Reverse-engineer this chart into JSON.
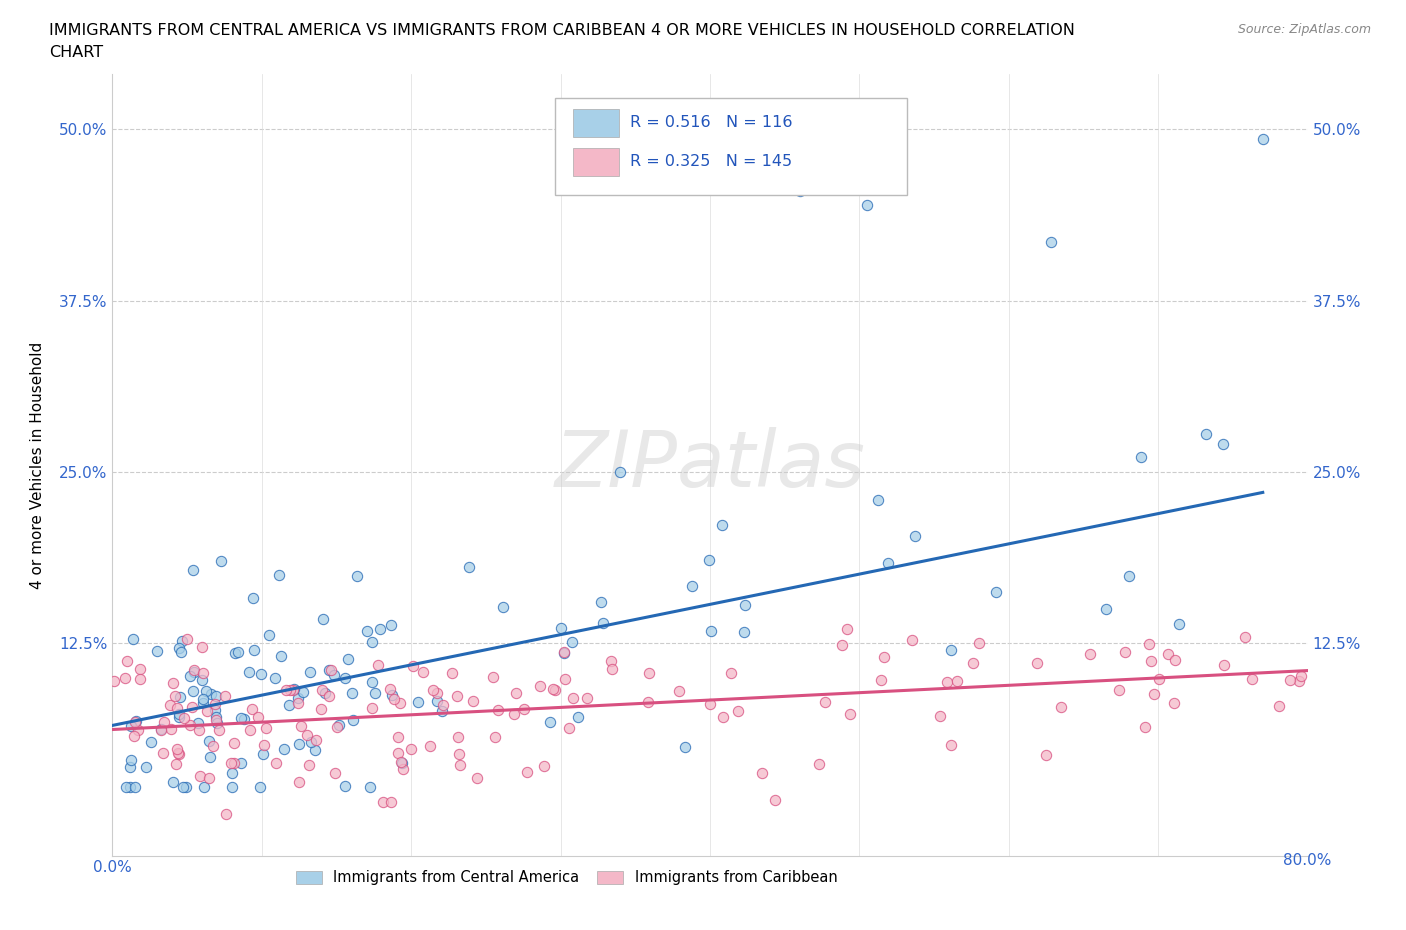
{
  "title_line1": "IMMIGRANTS FROM CENTRAL AMERICA VS IMMIGRANTS FROM CARIBBEAN 4 OR MORE VEHICLES IN HOUSEHOLD CORRELATION",
  "title_line2": "CHART",
  "source": "Source: ZipAtlas.com",
  "ylabel": "4 or more Vehicles in Household",
  "xlim": [
    0.0,
    0.8
  ],
  "ylim": [
    -0.03,
    0.54
  ],
  "blue_R": 0.516,
  "blue_N": 116,
  "pink_R": 0.325,
  "pink_N": 145,
  "blue_color": "#a8d0e8",
  "pink_color": "#f4b8c8",
  "blue_line_color": "#2468b4",
  "pink_line_color": "#d85080",
  "legend_label_blue": "Immigrants from Central America",
  "legend_label_pink": "Immigrants from Caribbean",
  "watermark": "ZIPatlas",
  "blue_line_x0": 0.0,
  "blue_line_y0": 0.065,
  "blue_line_x1": 0.77,
  "blue_line_y1": 0.235,
  "pink_line_x0": 0.0,
  "pink_line_y0": 0.062,
  "pink_line_x1": 0.8,
  "pink_line_y1": 0.105
}
